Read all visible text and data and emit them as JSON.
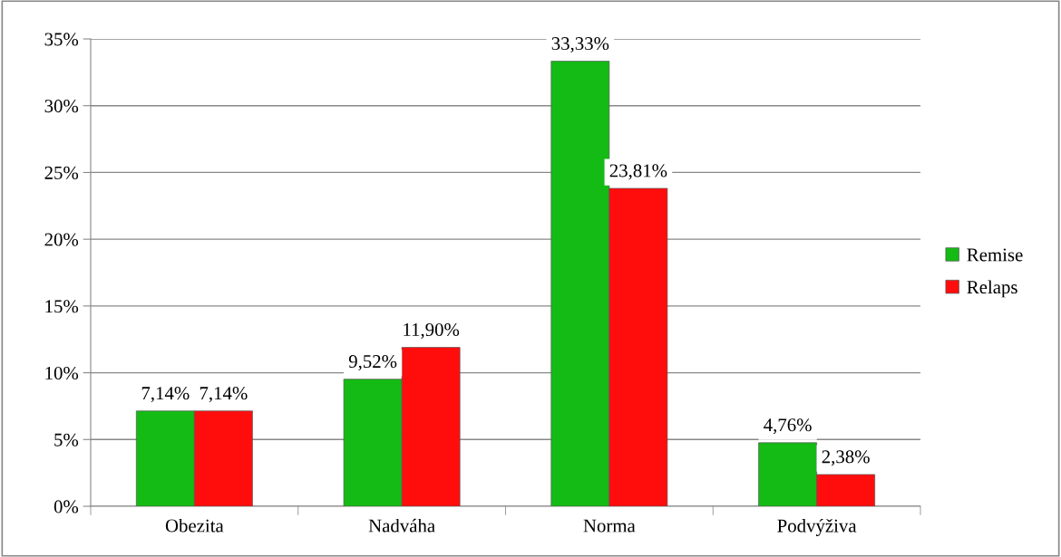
{
  "chart_data": {
    "type": "bar",
    "categories": [
      "Obezita",
      "Nadváha",
      "Norma",
      "Podvýživa"
    ],
    "series": [
      {
        "name": "Remise",
        "color": "#14bb14",
        "values": [
          7.14,
          9.52,
          33.33,
          4.76
        ],
        "value_labels": [
          "7,14%",
          "9,52%",
          "33,33%",
          "4,76%"
        ]
      },
      {
        "name": "Relaps",
        "color": "#ff0d0d",
        "values": [
          7.14,
          11.9,
          23.81,
          2.38
        ],
        "value_labels": [
          "7,14%",
          "11,90%",
          "23,81%",
          "2,38%"
        ]
      }
    ],
    "ylim": [
      0,
      35
    ],
    "yticks": [
      {
        "value": 0,
        "label": "0%"
      },
      {
        "value": 5,
        "label": "5%"
      },
      {
        "value": 10,
        "label": "10%"
      },
      {
        "value": 15,
        "label": "15%"
      },
      {
        "value": 20,
        "label": "20%"
      },
      {
        "value": 25,
        "label": "25%"
      },
      {
        "value": 30,
        "label": "30%"
      },
      {
        "value": 35,
        "label": "35%"
      }
    ],
    "grid": "y",
    "legend": "right"
  }
}
